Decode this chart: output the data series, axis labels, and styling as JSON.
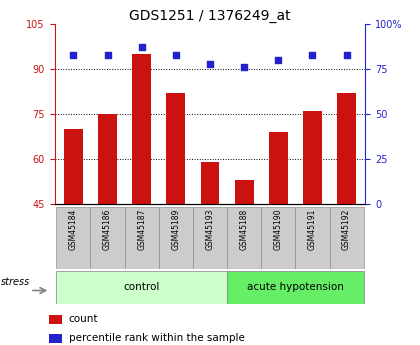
{
  "title": "GDS1251 / 1376249_at",
  "samples": [
    "GSM45184",
    "GSM45186",
    "GSM45187",
    "GSM45189",
    "GSM45193",
    "GSM45188",
    "GSM45190",
    "GSM45191",
    "GSM45192"
  ],
  "bar_values": [
    70,
    75,
    95,
    82,
    59,
    53,
    69,
    76,
    82
  ],
  "percentile_values": [
    83,
    83,
    87,
    83,
    78,
    76,
    80,
    83,
    83
  ],
  "left_ylim": [
    45,
    105
  ],
  "left_yticks": [
    45,
    60,
    75,
    90,
    105
  ],
  "right_ylim": [
    0,
    100
  ],
  "right_yticks": [
    0,
    25,
    50,
    75,
    100
  ],
  "right_yticklabels": [
    "0",
    "25",
    "50",
    "75",
    "100%"
  ],
  "bar_color": "#cc1111",
  "dot_color": "#2222cc",
  "control_label": "control",
  "acute_label": "acute hypotension",
  "stress_label": "stress",
  "control_count": 5,
  "acute_count": 4,
  "control_color": "#ccffcc",
  "acute_color": "#66ee66",
  "sample_bg_color": "#cccccc",
  "legend_count_label": "count",
  "legend_pct_label": "percentile rank within the sample",
  "title_fontsize": 10,
  "tick_fontsize": 7,
  "bar_width": 0.55,
  "gridlines": [
    60,
    75,
    90
  ]
}
